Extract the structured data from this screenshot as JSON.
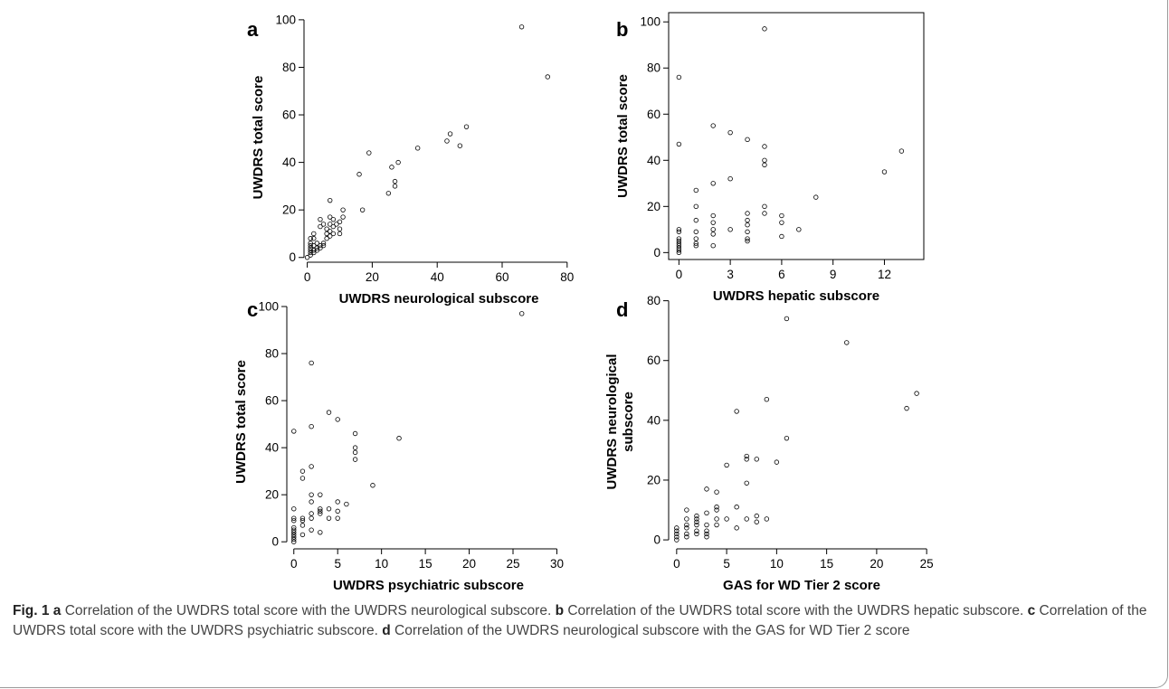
{
  "chart_data": [
    {
      "type": "scatter",
      "panel": "a",
      "xlabel": "UWDRS neurological subscore",
      "ylabel": "UWDRS total score",
      "xlim": [
        -1,
        82
      ],
      "ylim": [
        -2,
        103
      ],
      "xticks": [
        0,
        20,
        40,
        60,
        80
      ],
      "yticks": [
        0,
        20,
        40,
        60,
        80,
        100
      ],
      "points": [
        [
          0,
          0
        ],
        [
          1,
          1
        ],
        [
          1,
          2
        ],
        [
          1,
          3
        ],
        [
          1,
          4
        ],
        [
          1,
          5
        ],
        [
          1,
          6
        ],
        [
          1,
          8
        ],
        [
          2,
          2
        ],
        [
          2,
          3
        ],
        [
          2,
          5
        ],
        [
          2,
          8
        ],
        [
          2,
          10
        ],
        [
          3,
          3
        ],
        [
          3,
          4
        ],
        [
          3,
          6
        ],
        [
          4,
          4
        ],
        [
          4,
          5
        ],
        [
          4,
          13
        ],
        [
          4,
          16
        ],
        [
          5,
          5
        ],
        [
          5,
          6
        ],
        [
          5,
          14
        ],
        [
          6,
          8
        ],
        [
          6,
          10
        ],
        [
          6,
          12
        ],
        [
          7,
          9
        ],
        [
          7,
          11
        ],
        [
          7,
          14
        ],
        [
          7,
          17
        ],
        [
          7,
          24
        ],
        [
          8,
          10
        ],
        [
          8,
          13
        ],
        [
          8,
          16
        ],
        [
          9,
          14
        ],
        [
          10,
          10
        ],
        [
          10,
          12
        ],
        [
          10,
          15
        ],
        [
          11,
          17
        ],
        [
          11,
          20
        ],
        [
          16,
          35
        ],
        [
          17,
          20
        ],
        [
          19,
          44
        ],
        [
          25,
          27
        ],
        [
          26,
          38
        ],
        [
          27,
          30
        ],
        [
          27,
          32
        ],
        [
          28,
          40
        ],
        [
          34,
          46
        ],
        [
          43,
          49
        ],
        [
          44,
          52
        ],
        [
          47,
          47
        ],
        [
          49,
          55
        ],
        [
          66,
          97
        ],
        [
          74,
          76
        ]
      ]
    },
    {
      "type": "scatter",
      "panel": "b",
      "xlabel": "UWDRS hepatic subscore",
      "ylabel": "UWDRS total score",
      "xlim": [
        -0.6,
        14.3
      ],
      "ylim": [
        -3,
        104
      ],
      "xticks": [
        0,
        3,
        6,
        9,
        12
      ],
      "yticks": [
        0,
        20,
        40,
        60,
        80,
        100
      ],
      "points": [
        [
          0,
          0
        ],
        [
          0,
          1
        ],
        [
          0,
          2
        ],
        [
          0,
          3
        ],
        [
          0,
          4
        ],
        [
          0,
          5
        ],
        [
          0,
          6
        ],
        [
          0,
          9
        ],
        [
          0,
          10
        ],
        [
          0,
          47
        ],
        [
          0,
          76
        ],
        [
          1,
          3
        ],
        [
          1,
          4
        ],
        [
          1,
          6
        ],
        [
          1,
          9
        ],
        [
          1,
          14
        ],
        [
          1,
          20
        ],
        [
          1,
          27
        ],
        [
          2,
          3
        ],
        [
          2,
          8
        ],
        [
          2,
          10
        ],
        [
          2,
          13
        ],
        [
          2,
          16
        ],
        [
          2,
          30
        ],
        [
          2,
          55
        ],
        [
          3,
          10
        ],
        [
          3,
          32
        ],
        [
          3,
          52
        ],
        [
          4,
          5
        ],
        [
          4,
          6
        ],
        [
          4,
          9
        ],
        [
          4,
          12
        ],
        [
          4,
          14
        ],
        [
          4,
          17
        ],
        [
          4,
          49
        ],
        [
          5,
          17
        ],
        [
          5,
          20
        ],
        [
          5,
          38
        ],
        [
          5,
          40
        ],
        [
          5,
          46
        ],
        [
          5,
          97
        ],
        [
          6,
          7
        ],
        [
          6,
          13
        ],
        [
          6,
          16
        ],
        [
          7,
          10
        ],
        [
          8,
          24
        ],
        [
          12,
          35
        ],
        [
          13,
          44
        ]
      ]
    },
    {
      "type": "scatter",
      "panel": "c",
      "xlabel": "UWDRS psychiatric subscore",
      "ylabel": "UWDRS total score",
      "xlim": [
        -0.8,
        31.5
      ],
      "ylim": [
        -3,
        105
      ],
      "xticks": [
        0,
        5,
        10,
        15,
        20,
        25,
        30
      ],
      "yticks": [
        0,
        20,
        40,
        60,
        80,
        100
      ],
      "points": [
        [
          0,
          0
        ],
        [
          0,
          1
        ],
        [
          0,
          2
        ],
        [
          0,
          3
        ],
        [
          0,
          4
        ],
        [
          0,
          5
        ],
        [
          0,
          6
        ],
        [
          0,
          9
        ],
        [
          0,
          10
        ],
        [
          0,
          14
        ],
        [
          0,
          47
        ],
        [
          1,
          3
        ],
        [
          1,
          7
        ],
        [
          1,
          9
        ],
        [
          1,
          10
        ],
        [
          1,
          27
        ],
        [
          1,
          30
        ],
        [
          2,
          5
        ],
        [
          2,
          10
        ],
        [
          2,
          12
        ],
        [
          2,
          17
        ],
        [
          2,
          20
        ],
        [
          2,
          32
        ],
        [
          2,
          49
        ],
        [
          2,
          76
        ],
        [
          3,
          4
        ],
        [
          3,
          12
        ],
        [
          3,
          13
        ],
        [
          3,
          14
        ],
        [
          3,
          20
        ],
        [
          4,
          10
        ],
        [
          4,
          14
        ],
        [
          4,
          55
        ],
        [
          5,
          10
        ],
        [
          5,
          13
        ],
        [
          5,
          17
        ],
        [
          5,
          52
        ],
        [
          6,
          16
        ],
        [
          7,
          35
        ],
        [
          7,
          38
        ],
        [
          7,
          40
        ],
        [
          7,
          46
        ],
        [
          9,
          24
        ],
        [
          12,
          44
        ],
        [
          26,
          97
        ]
      ]
    },
    {
      "type": "scatter",
      "panel": "d",
      "xlabel": "GAS for WD Tier 2 score",
      "ylabel": "UWDRS neurological subscore",
      "xlim": [
        -0.8,
        25.8
      ],
      "ylim": [
        -3,
        82
      ],
      "xticks": [
        0,
        5,
        10,
        15,
        20,
        25
      ],
      "yticks": [
        0,
        20,
        40,
        60,
        80
      ],
      "points": [
        [
          0,
          0
        ],
        [
          0,
          1
        ],
        [
          0,
          2
        ],
        [
          0,
          3
        ],
        [
          0,
          4
        ],
        [
          1,
          1
        ],
        [
          1,
          2
        ],
        [
          1,
          4
        ],
        [
          1,
          5
        ],
        [
          1,
          7
        ],
        [
          1,
          10
        ],
        [
          2,
          2
        ],
        [
          2,
          3
        ],
        [
          2,
          5
        ],
        [
          2,
          6
        ],
        [
          2,
          7
        ],
        [
          2,
          8
        ],
        [
          3,
          1
        ],
        [
          3,
          2
        ],
        [
          3,
          3
        ],
        [
          3,
          5
        ],
        [
          3,
          9
        ],
        [
          3,
          17
        ],
        [
          4,
          5
        ],
        [
          4,
          7
        ],
        [
          4,
          10
        ],
        [
          4,
          11
        ],
        [
          4,
          16
        ],
        [
          5,
          7
        ],
        [
          5,
          25
        ],
        [
          6,
          4
        ],
        [
          6,
          11
        ],
        [
          6,
          43
        ],
        [
          7,
          7
        ],
        [
          7,
          19
        ],
        [
          7,
          27
        ],
        [
          7,
          28
        ],
        [
          8,
          6
        ],
        [
          8,
          8
        ],
        [
          8,
          27
        ],
        [
          9,
          7
        ],
        [
          9,
          47
        ],
        [
          10,
          26
        ],
        [
          11,
          34
        ],
        [
          11,
          74
        ],
        [
          17,
          66
        ],
        [
          23,
          44
        ],
        [
          24,
          49
        ]
      ]
    }
  ],
  "caption": {
    "fig_label": "Fig. 1",
    "a_letter": "a",
    "a_text": " Correlation of the UWDRS total score with the UWDRS neurological subscore. ",
    "b_letter": "b",
    "b_text": " Correlation of the UWDRS total score with the UWDRS hepatic subscore. ",
    "c_letter": "c",
    "c_text": " Correlation of the UWDRS total score with the UWDRS psychiatric subscore. ",
    "d_letter": "d",
    "d_text": " Correlation of the UWDRS neurological subscore with the GAS for WD Tier 2 score"
  }
}
